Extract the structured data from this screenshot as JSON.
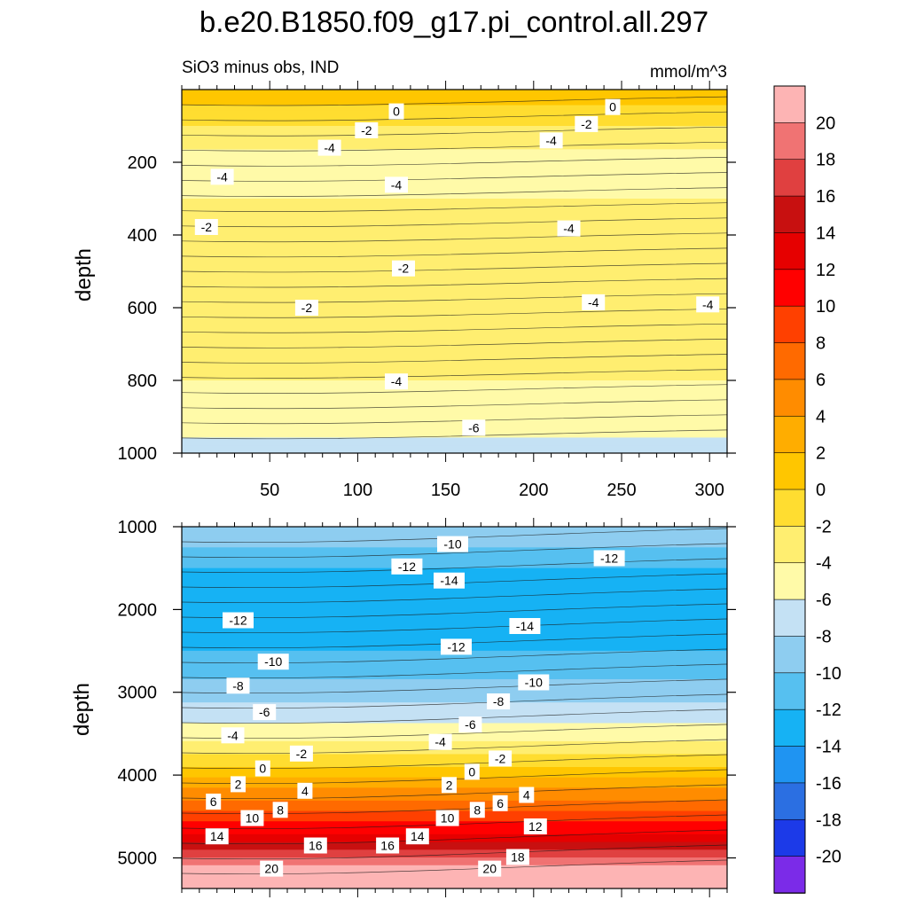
{
  "chart_data": {
    "type": "heatmap",
    "title": "b.e20.B1850.f09_g17.pi_control.all.297",
    "subtitle_left": "SiO3 minus obs, IND",
    "subtitle_right": "mmol/m^3",
    "ylabel": "depth",
    "colorbar": {
      "levels": [
        -20,
        -18,
        -16,
        -14,
        -12,
        -10,
        -8,
        -6,
        -4,
        -2,
        0,
        2,
        4,
        6,
        8,
        10,
        12,
        14,
        16,
        18,
        20
      ],
      "tick_labels": [
        "20",
        "18",
        "16",
        "14",
        "12",
        "10",
        "8",
        "6",
        "4",
        "2",
        "0",
        "-2",
        "-4",
        "-6",
        "-8",
        "-10",
        "-12",
        "-14",
        "-16",
        "-18",
        "-20"
      ]
    },
    "panels": [
      {
        "name": "upper",
        "yrange": [
          0,
          1000
        ],
        "ytick_values": [
          200,
          400,
          600,
          800,
          1000
        ],
        "ytick_labels": [
          "200",
          "400",
          "600",
          "800",
          "1000"
        ],
        "xrange": [
          0,
          310
        ],
        "xtick_values": [
          50,
          100,
          150,
          200,
          250,
          300
        ],
        "xtick_labels": [
          "50",
          "100",
          "150",
          "200",
          "250",
          "300"
        ],
        "depth_profile": [
          {
            "depth": 0,
            "value": 1
          },
          {
            "depth": 40,
            "value": 0
          },
          {
            "depth": 100,
            "value": -2
          },
          {
            "depth": 200,
            "value": -5
          },
          {
            "depth": 300,
            "value": -4
          },
          {
            "depth": 400,
            "value": -3
          },
          {
            "depth": 600,
            "value": -2.5
          },
          {
            "depth": 800,
            "value": -4
          },
          {
            "depth": 1000,
            "value": -6.5
          }
        ],
        "contour_labels": [
          {
            "x": 122,
            "d": 60,
            "text": "0"
          },
          {
            "x": 245,
            "d": 48,
            "text": "0"
          },
          {
            "x": 105,
            "d": 112,
            "text": "-2"
          },
          {
            "x": 230,
            "d": 95,
            "text": "-2"
          },
          {
            "x": 84,
            "d": 160,
            "text": "-4"
          },
          {
            "x": 210,
            "d": 140,
            "text": "-4"
          },
          {
            "x": 23,
            "d": 240,
            "text": "-4"
          },
          {
            "x": 122,
            "d": 262,
            "text": "-4"
          },
          {
            "x": 14,
            "d": 378,
            "text": "-2"
          },
          {
            "x": 220,
            "d": 382,
            "text": "-4"
          },
          {
            "x": 126,
            "d": 492,
            "text": "-2"
          },
          {
            "x": 71,
            "d": 600,
            "text": "-2"
          },
          {
            "x": 234,
            "d": 585,
            "text": "-4"
          },
          {
            "x": 299,
            "d": 591,
            "text": "-4"
          },
          {
            "x": 122,
            "d": 803,
            "text": "-4"
          },
          {
            "x": 166,
            "d": 930,
            "text": "-6"
          }
        ]
      },
      {
        "name": "lower",
        "yrange": [
          1000,
          5370
        ],
        "ytick_values": [
          1000,
          2000,
          3000,
          4000,
          5000
        ],
        "ytick_labels": [
          "1000",
          "2000",
          "3000",
          "4000",
          "5000"
        ],
        "xrange": [
          0,
          310
        ],
        "depth_profile": [
          {
            "depth": 1000,
            "value": -8
          },
          {
            "depth": 1500,
            "value": -12
          },
          {
            "depth": 2000,
            "value": -14
          },
          {
            "depth": 2500,
            "value": -12
          },
          {
            "depth": 3000,
            "value": -9
          },
          {
            "depth": 3500,
            "value": -5
          },
          {
            "depth": 3900,
            "value": 0
          },
          {
            "depth": 4300,
            "value": 6
          },
          {
            "depth": 4700,
            "value": 12
          },
          {
            "depth": 5000,
            "value": 18
          },
          {
            "depth": 5150,
            "value": 21
          },
          {
            "depth": 5370,
            "value": 21
          }
        ],
        "contour_labels": [
          {
            "x": 154,
            "d": 1210,
            "text": "-10"
          },
          {
            "x": 128,
            "d": 1480,
            "text": "-12"
          },
          {
            "x": 243,
            "d": 1380,
            "text": "-12"
          },
          {
            "x": 152,
            "d": 1650,
            "text": "-14"
          },
          {
            "x": 32,
            "d": 2130,
            "text": "-12"
          },
          {
            "x": 195,
            "d": 2200,
            "text": "-14"
          },
          {
            "x": 156,
            "d": 2450,
            "text": "-12"
          },
          {
            "x": 52,
            "d": 2630,
            "text": "-10"
          },
          {
            "x": 200,
            "d": 2880,
            "text": "-10"
          },
          {
            "x": 32,
            "d": 2920,
            "text": "-8"
          },
          {
            "x": 180,
            "d": 3110,
            "text": "-8"
          },
          {
            "x": 47,
            "d": 3240,
            "text": "-6"
          },
          {
            "x": 164,
            "d": 3390,
            "text": "-6"
          },
          {
            "x": 29,
            "d": 3520,
            "text": "-4"
          },
          {
            "x": 147,
            "d": 3600,
            "text": "-4"
          },
          {
            "x": 68,
            "d": 3740,
            "text": "-2"
          },
          {
            "x": 181,
            "d": 3800,
            "text": "-2"
          },
          {
            "x": 46,
            "d": 3920,
            "text": "0"
          },
          {
            "x": 165,
            "d": 3960,
            "text": "0"
          },
          {
            "x": 32,
            "d": 4110,
            "text": "2"
          },
          {
            "x": 152,
            "d": 4120,
            "text": "2"
          },
          {
            "x": 70,
            "d": 4190,
            "text": "4"
          },
          {
            "x": 196,
            "d": 4240,
            "text": "4"
          },
          {
            "x": 18,
            "d": 4320,
            "text": "6"
          },
          {
            "x": 181,
            "d": 4340,
            "text": "6"
          },
          {
            "x": 56,
            "d": 4420,
            "text": "8"
          },
          {
            "x": 168,
            "d": 4420,
            "text": "8"
          },
          {
            "x": 40,
            "d": 4520,
            "text": "10"
          },
          {
            "x": 151,
            "d": 4520,
            "text": "10"
          },
          {
            "x": 201,
            "d": 4620,
            "text": "12"
          },
          {
            "x": 20,
            "d": 4740,
            "text": "14"
          },
          {
            "x": 134,
            "d": 4740,
            "text": "14"
          },
          {
            "x": 76,
            "d": 4850,
            "text": "16"
          },
          {
            "x": 117,
            "d": 4850,
            "text": "16"
          },
          {
            "x": 191,
            "d": 4990,
            "text": "18"
          },
          {
            "x": 51,
            "d": 5130,
            "text": "20"
          },
          {
            "x": 175,
            "d": 5130,
            "text": "20"
          }
        ]
      }
    ]
  }
}
